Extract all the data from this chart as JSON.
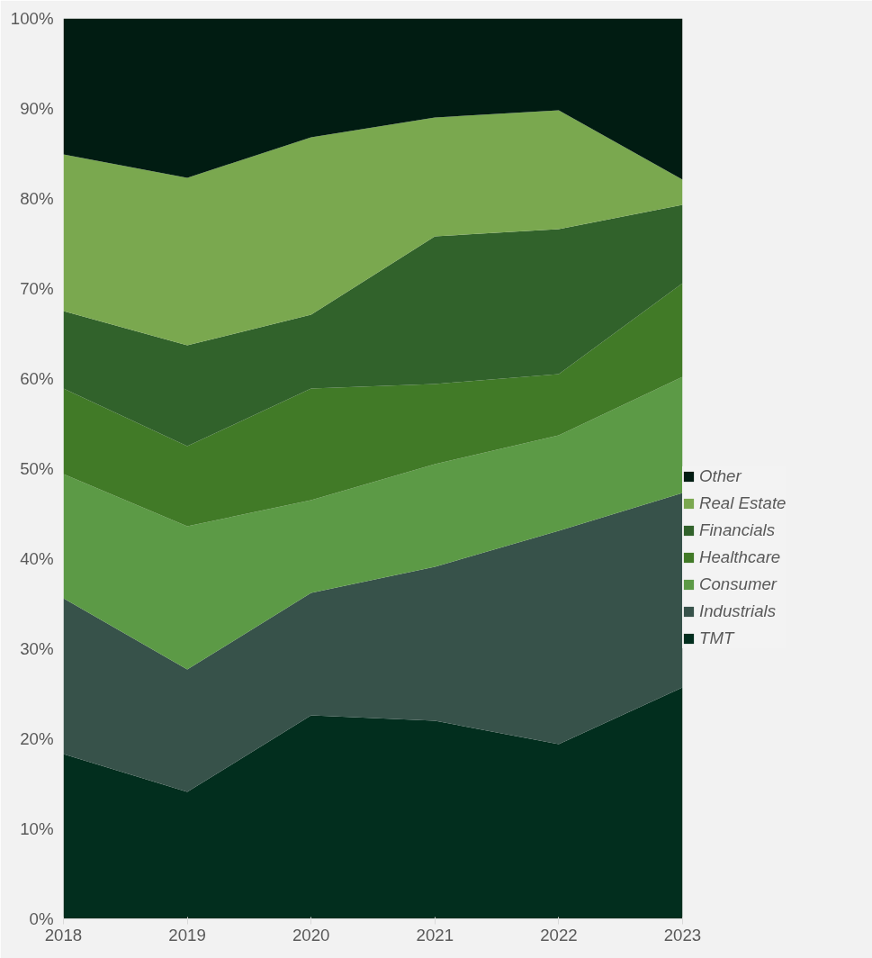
{
  "chart_data": {
    "type": "area",
    "stacked": true,
    "x": [
      2018,
      2019,
      2020,
      2021,
      2022,
      2023
    ],
    "series": [
      {
        "name": "TMT",
        "color": "#022e1e",
        "values": [
          18.3,
          14.1,
          22.6,
          22.0,
          19.4,
          25.7
        ]
      },
      {
        "name": "Industrials",
        "color": "#37524a",
        "values": [
          17.3,
          13.6,
          13.6,
          17.1,
          23.7,
          21.6
        ]
      },
      {
        "name": "Consumer",
        "color": "#5c9a46",
        "values": [
          13.8,
          15.9,
          10.3,
          11.4,
          10.6,
          12.9
        ]
      },
      {
        "name": "Healthcare",
        "color": "#417a27",
        "values": [
          9.5,
          8.9,
          12.4,
          8.9,
          6.8,
          10.4
        ]
      },
      {
        "name": "Financials",
        "color": "#31622b",
        "values": [
          8.6,
          11.2,
          8.2,
          16.4,
          16.1,
          8.7
        ]
      },
      {
        "name": "Real Estate",
        "color": "#7aa84f",
        "values": [
          17.4,
          18.6,
          19.7,
          13.2,
          13.2,
          2.8
        ]
      },
      {
        "name": "Other",
        "color": "#011c12",
        "values": [
          15.1,
          17.7,
          13.2,
          11.0,
          10.2,
          17.9
        ]
      }
    ],
    "xlim": [
      2018,
      2023
    ],
    "xticks": [
      2018,
      2019,
      2020,
      2021,
      2022,
      2023
    ],
    "ylim": [
      0,
      100
    ],
    "yticks": [
      {
        "value": 0,
        "label": "0%"
      },
      {
        "value": 10,
        "label": "10%"
      },
      {
        "value": 20,
        "label": "20%"
      },
      {
        "value": 30,
        "label": "30%"
      },
      {
        "value": 40,
        "label": "40%"
      },
      {
        "value": 50,
        "label": "50%"
      },
      {
        "value": 60,
        "label": "60%"
      },
      {
        "value": 70,
        "label": "70%"
      },
      {
        "value": 80,
        "label": "80%"
      },
      {
        "value": 90,
        "label": "90%"
      },
      {
        "value": 100,
        "label": "100%"
      }
    ],
    "legend": "right"
  }
}
